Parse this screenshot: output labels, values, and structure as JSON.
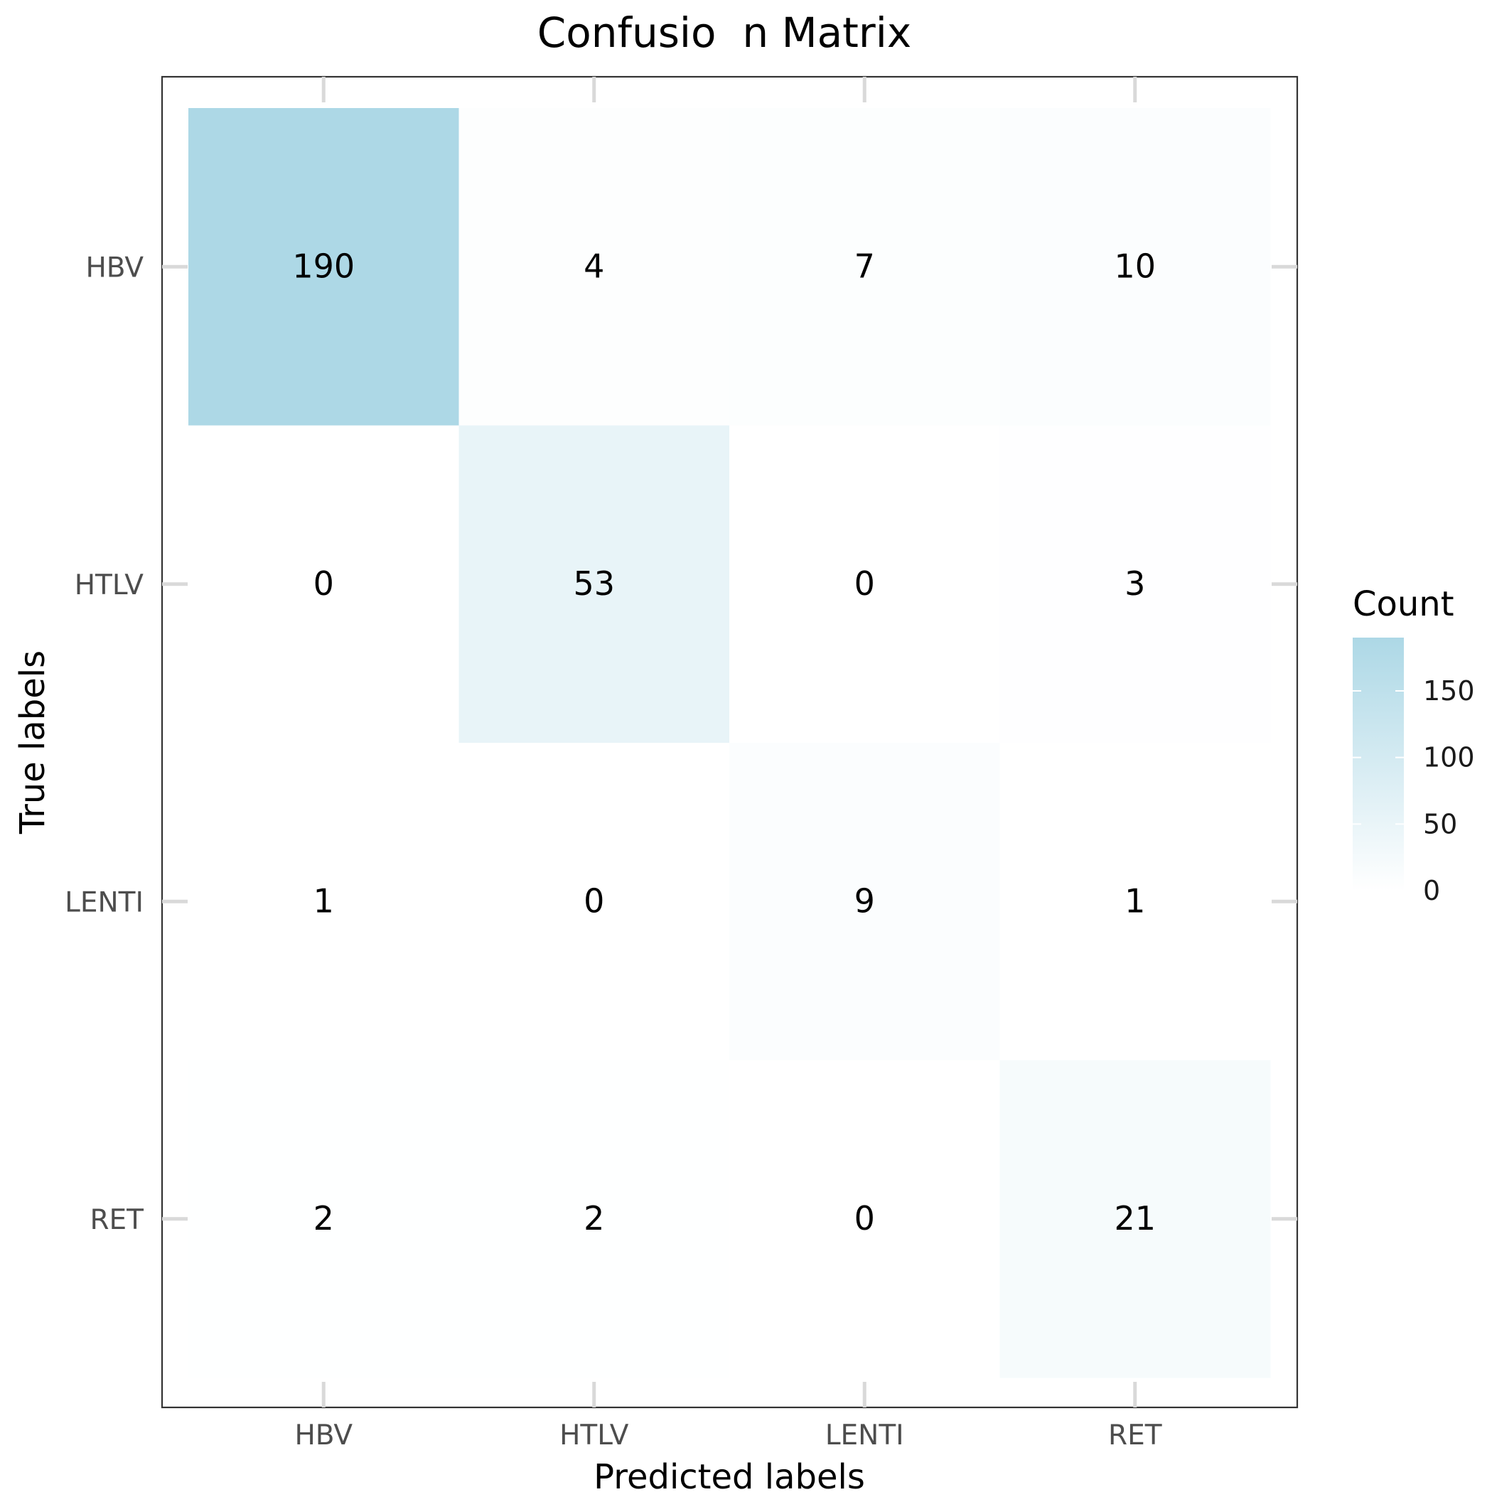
{
  "chart_data": {
    "type": "heatmap",
    "title": "Confusio  n Matrix",
    "xlabel": "Predicted labels",
    "ylabel": "True labels",
    "x_categories": [
      "HBV",
      "HTLV",
      "LENTI",
      "RET"
    ],
    "y_categories": [
      "HBV",
      "HTLV",
      "LENTI",
      "RET"
    ],
    "values": [
      [
        190,
        4,
        7,
        10
      ],
      [
        0,
        53,
        0,
        3
      ],
      [
        1,
        0,
        9,
        1
      ],
      [
        2,
        2,
        0,
        21
      ]
    ],
    "legend": {
      "title": "Count",
      "ticks": [
        0,
        50,
        100,
        150
      ],
      "min": 0,
      "max": 190,
      "position": "right"
    },
    "colors": {
      "low": "#ffffff",
      "high": "#add8e6",
      "panel_border": "#333333",
      "tick_mark": "#d9d9d9",
      "axis_text": "#4d4d4d",
      "cell_text": "#000000"
    }
  }
}
